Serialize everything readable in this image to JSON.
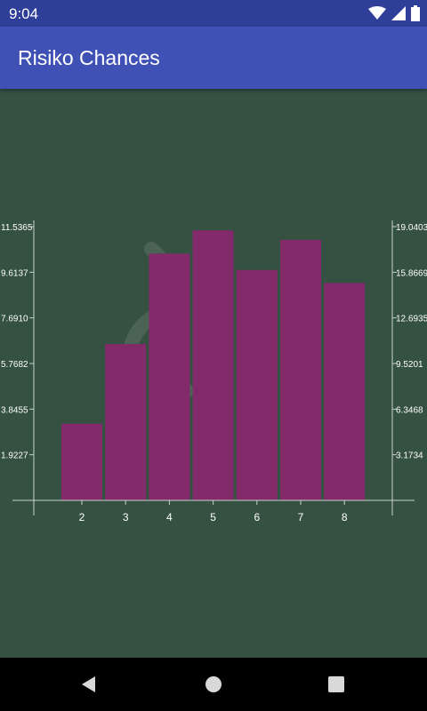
{
  "status_bar": {
    "time": "9:04"
  },
  "app_bar": {
    "title": "Risiko Chances"
  },
  "colors": {
    "background": "#355142",
    "bar_fill": "#832a6a",
    "axis": "#c8d2cc",
    "app_bar": "#3f51b5",
    "status_bar": "#2f3e98"
  },
  "icons": [
    "wifi-icon",
    "signal-icon",
    "battery-icon",
    "back-icon",
    "home-icon",
    "recents-icon"
  ],
  "chart_data": {
    "type": "bar",
    "categories": [
      "2",
      "3",
      "4",
      "5",
      "6",
      "7",
      "8"
    ],
    "values": [
      3.23,
      6.59,
      10.4,
      11.38,
      9.71,
      10.98,
      9.16
    ],
    "left_ticks": [
      "1.9227",
      "3.8455",
      "5.7682",
      "7.6910",
      "9.6137",
      "11.5365"
    ],
    "right_ticks": [
      "3.1734",
      "6.3468",
      "9.5201",
      "12.6935",
      "15.8669",
      "19.0403"
    ],
    "ylim": [
      0,
      11.5365
    ],
    "grid": false
  }
}
